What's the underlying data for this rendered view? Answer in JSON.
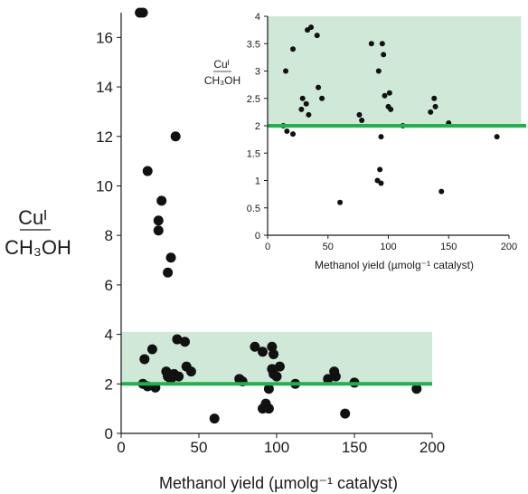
{
  "chart_data": [
    {
      "type": "scatter",
      "panel": "main",
      "xlabel": "Methanol yield (µmolg⁻¹ catalyst)",
      "ylabel_top": "Cuᴵ",
      "ylabel_bottom": "CH₃OH",
      "xlim": [
        0,
        200
      ],
      "ylim": [
        0,
        17
      ],
      "x_ticks": [
        "0",
        "50",
        "100",
        "150",
        "200"
      ],
      "y_ticks": [
        "0",
        "2",
        "4",
        "6",
        "8",
        "10",
        "12",
        "14",
        "16"
      ],
      "band": {
        "y_from": 2,
        "y_to": 4.1,
        "x_from": 0,
        "x_to": 200,
        "color": "#cfe8d8"
      },
      "ref_line": {
        "y": 2,
        "color": "#1fb24a"
      },
      "point_color": "#111111",
      "points": [
        [
          12,
          17
        ],
        [
          14,
          17
        ],
        [
          17,
          10.6
        ],
        [
          35,
          12
        ],
        [
          24,
          8.6
        ],
        [
          24,
          8.2
        ],
        [
          26,
          9.4
        ],
        [
          32,
          7.1
        ],
        [
          30,
          6.5
        ],
        [
          15,
          3.0
        ],
        [
          20,
          3.4
        ],
        [
          14,
          2.0
        ],
        [
          17,
          1.9
        ],
        [
          22,
          1.85
        ],
        [
          30,
          2.3
        ],
        [
          29,
          2.5
        ],
        [
          32,
          2.2
        ],
        [
          34,
          2.4
        ],
        [
          36,
          3.8
        ],
        [
          41,
          3.7
        ],
        [
          42,
          2.7
        ],
        [
          45,
          2.5
        ],
        [
          37,
          2.3
        ],
        [
          60,
          0.6
        ],
        [
          76,
          2.2
        ],
        [
          78,
          2.1
        ],
        [
          86,
          3.5
        ],
        [
          91,
          3.3
        ],
        [
          91,
          1.0
        ],
        [
          93,
          1.2
        ],
        [
          95,
          1.0
        ],
        [
          95,
          1.8
        ],
        [
          97,
          3.5
        ],
        [
          98,
          3.2
        ],
        [
          97,
          2.6
        ],
        [
          100,
          2.3
        ],
        [
          102,
          2.7
        ],
        [
          98,
          2.4
        ],
        [
          112,
          2.0
        ],
        [
          133,
          2.2
        ],
        [
          137,
          2.5
        ],
        [
          138,
          2.3
        ],
        [
          144,
          0.8
        ],
        [
          150,
          2.05
        ],
        [
          190,
          1.8
        ]
      ]
    },
    {
      "type": "scatter",
      "panel": "inset",
      "xlabel": "Methanol yield (µmolg⁻¹ catalyst)",
      "ylabel_top": "Cuᴵ",
      "ylabel_bottom": "CH₃OH",
      "xlim": [
        0,
        200
      ],
      "ylim": [
        0,
        4
      ],
      "x_ticks": [
        "0",
        "50",
        "100",
        "150",
        "200"
      ],
      "y_ticks": [
        "0",
        "0.5",
        "1",
        "1.5",
        "2",
        "2.5",
        "3",
        "3.5",
        "4"
      ],
      "band": {
        "y_from": 2,
        "y_to": 4,
        "x_from": 0,
        "x_to": 210,
        "color": "#cfe8d8"
      },
      "ref_line": {
        "y": 2,
        "color": "#1fb24a"
      },
      "point_color": "#111111",
      "points": [
        [
          13,
          2.0
        ],
        [
          15,
          3.0
        ],
        [
          16,
          1.9
        ],
        [
          21,
          3.4
        ],
        [
          21,
          1.85
        ],
        [
          28,
          2.3
        ],
        [
          29,
          2.5
        ],
        [
          32,
          2.4
        ],
        [
          33,
          3.75
        ],
        [
          34,
          2.2
        ],
        [
          36,
          3.8
        ],
        [
          41,
          3.65
        ],
        [
          42,
          2.7
        ],
        [
          45,
          2.5
        ],
        [
          60,
          0.6
        ],
        [
          76,
          2.2
        ],
        [
          78,
          2.1
        ],
        [
          86,
          3.5
        ],
        [
          91,
          1.0
        ],
        [
          92,
          3.0
        ],
        [
          93,
          1.2
        ],
        [
          94,
          0.95
        ],
        [
          94,
          1.8
        ],
        [
          95,
          3.5
        ],
        [
          96,
          3.3
        ],
        [
          97,
          2.55
        ],
        [
          100,
          2.35
        ],
        [
          101,
          2.6
        ],
        [
          102,
          2.3
        ],
        [
          112,
          2.0
        ],
        [
          135,
          2.25
        ],
        [
          138,
          2.5
        ],
        [
          139,
          2.35
        ],
        [
          144,
          0.8
        ],
        [
          150,
          2.05
        ],
        [
          190,
          1.8
        ]
      ]
    }
  ]
}
